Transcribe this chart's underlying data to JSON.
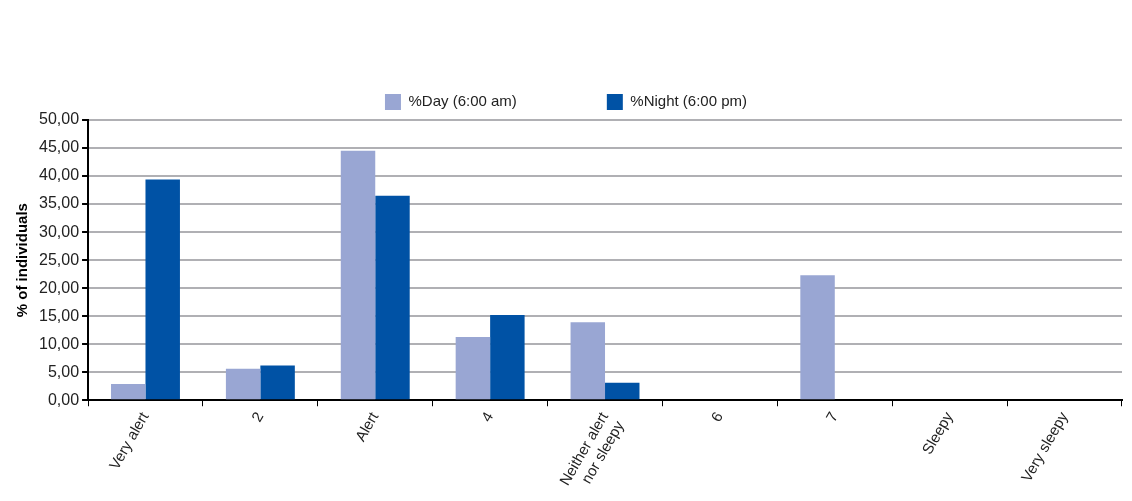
{
  "chart_data": {
    "type": "bar",
    "ylabel": "% of individuals",
    "categories": [
      "Very alert",
      "2",
      "Alert",
      "4",
      "Neither alert\nnor sleepy",
      "6",
      "7",
      "Sleepy",
      "Very sleepy"
    ],
    "series": [
      {
        "name": "%Day (6:00 am)",
        "color": "#99a6d3",
        "values": [
          2.9,
          5.6,
          44.5,
          11.3,
          13.9,
          0,
          22.3,
          0,
          0
        ]
      },
      {
        "name": "%Night (6:00 pm)",
        "color": "#0052a5",
        "values": [
          39.4,
          6.2,
          36.5,
          15.2,
          3.1,
          0,
          0,
          0,
          0
        ]
      }
    ],
    "ylim": [
      0,
      50
    ],
    "yticks": [
      {
        "value": 0,
        "label": "0,00"
      },
      {
        "value": 5,
        "label": "5,00"
      },
      {
        "value": 10,
        "label": "10,00"
      },
      {
        "value": 15,
        "label": "15,00"
      },
      {
        "value": 20,
        "label": "20,00"
      },
      {
        "value": 25,
        "label": "25,00"
      },
      {
        "value": 30,
        "label": "30,00"
      },
      {
        "value": 35,
        "label": "35,00"
      },
      {
        "value": 40,
        "label": "40,00"
      },
      {
        "value": 45,
        "label": "45,00"
      },
      {
        "value": 50,
        "label": "50,00"
      }
    ],
    "grid": "y",
    "legend": "top"
  }
}
